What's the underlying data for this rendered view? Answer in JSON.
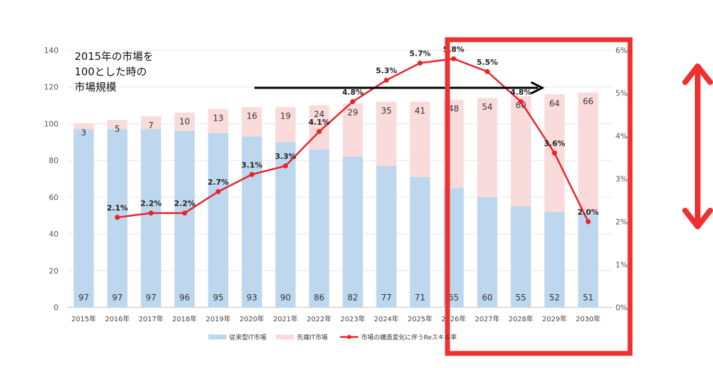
{
  "chart_data": {
    "type": "bar",
    "stacked": true,
    "categories": [
      "2015年",
      "2016年",
      "2017年",
      "2018年",
      "2019年",
      "2020年",
      "2021年",
      "2022年",
      "2023年",
      "2024年",
      "2025年",
      "2026年",
      "2027年",
      "2028年",
      "2029年",
      "2030年"
    ],
    "series": [
      {
        "name": "従来型IT市場",
        "type": "bar",
        "color": "#bdd7ee",
        "values": [
          97,
          97,
          97,
          96,
          95,
          93,
          90,
          86,
          82,
          77,
          71,
          65,
          60,
          55,
          52,
          51
        ]
      },
      {
        "name": "先端IT市場",
        "type": "bar",
        "color": "#fadbdb",
        "values": [
          3,
          5,
          7,
          10,
          13,
          16,
          19,
          24,
          29,
          35,
          41,
          48,
          54,
          60,
          64,
          66
        ]
      },
      {
        "name": "市場の構造変化に伴うReスキル率",
        "type": "line",
        "axis": "right",
        "color": "#e8242a",
        "values": [
          null,
          2.1,
          2.2,
          2.2,
          2.7,
          3.1,
          3.3,
          4.1,
          4.8,
          5.3,
          5.7,
          5.8,
          5.5,
          4.8,
          3.6,
          2.0
        ],
        "labels": [
          null,
          "2.1%",
          "2.2%",
          "2.2%",
          "2.7%",
          "3.1%",
          "3.3%",
          "4.1%",
          "4.8%",
          "5.3%",
          "5.7%",
          "5.8%",
          "5.5%",
          "4.8%",
          "3.6%",
          "2.0%"
        ]
      }
    ],
    "ylim": [
      0,
      140
    ],
    "yticks": [
      "0",
      "20",
      "40",
      "60",
      "80",
      "100",
      "120",
      "140"
    ],
    "y2lim": [
      0,
      6
    ],
    "y2ticks": [
      "0%",
      "1%",
      "2%",
      "3%",
      "4%",
      "5%",
      "6%"
    ],
    "grid": true,
    "legend": "bottom",
    "annotation_lines": [
      "2015年の市場を",
      "100とした時の",
      "市場規模"
    ]
  },
  "colors": {
    "highlight_box": "#f03030",
    "arrow": "#000000",
    "double_arrow": "#f03030"
  }
}
